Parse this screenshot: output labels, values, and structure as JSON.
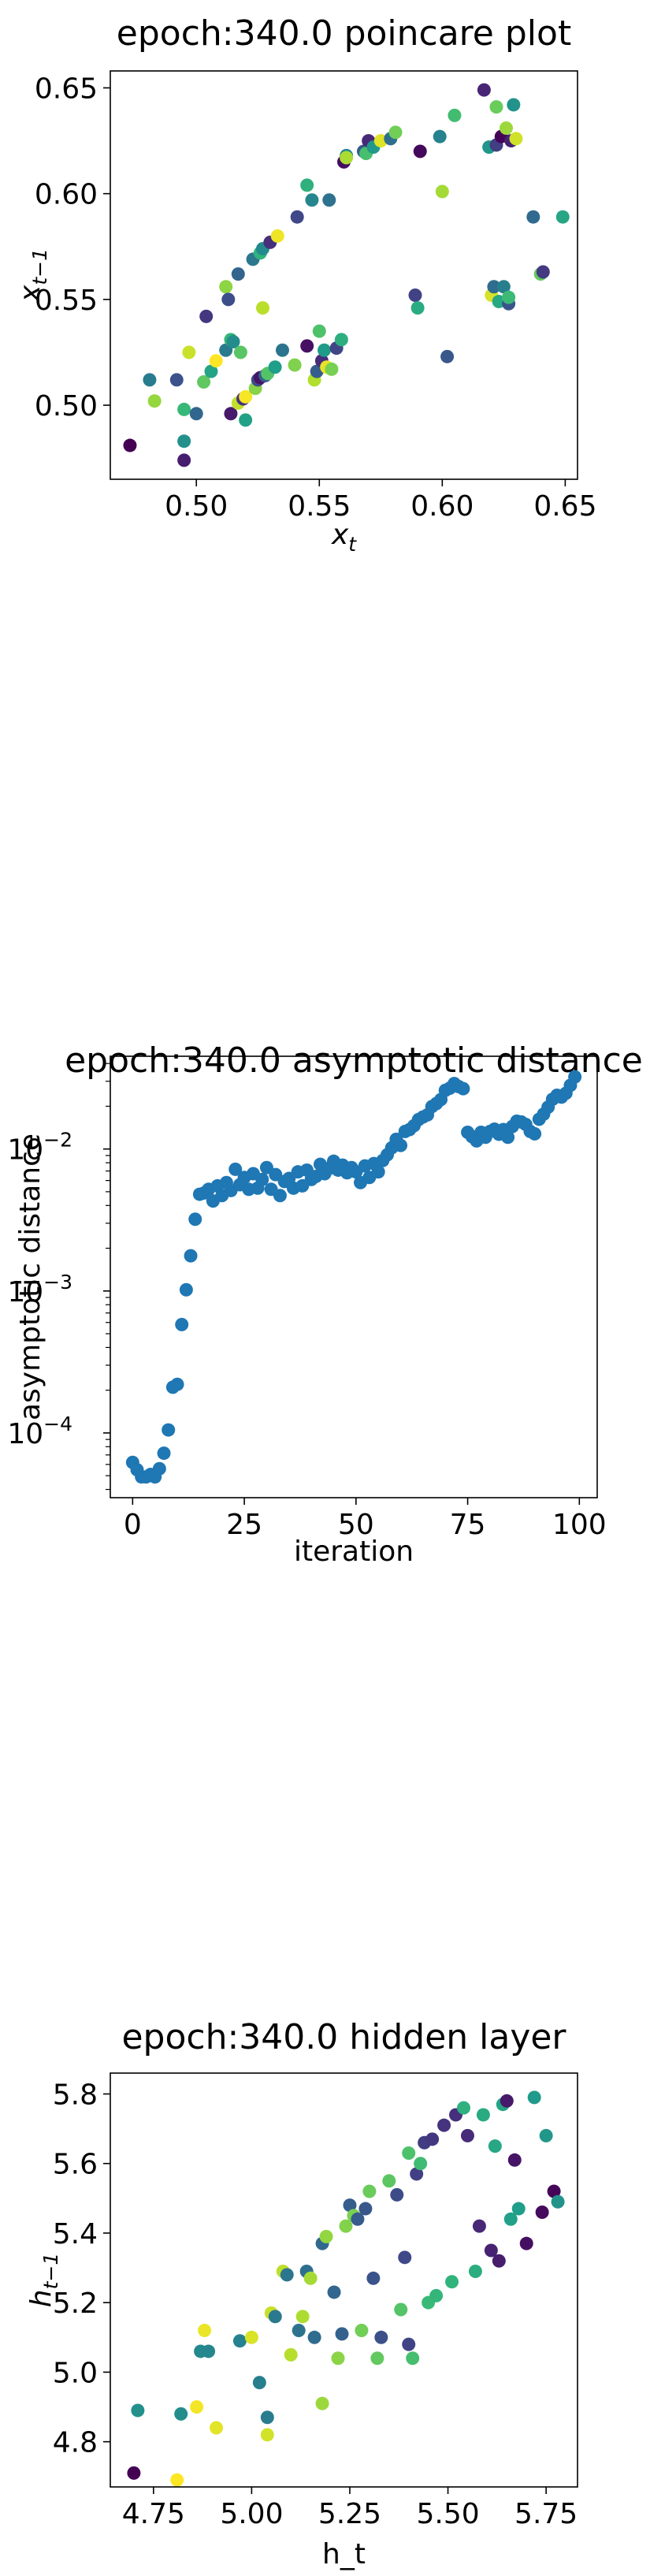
{
  "charts": [
    {
      "type": "scatter",
      "title": "epoch:340.0 poincare plot",
      "xlabel": "x",
      "xlabel_sub": "t",
      "ylabel": "x",
      "ylabel_sub": "t−1",
      "xlim": [
        0.465,
        0.655
      ],
      "ylim": [
        0.465,
        0.658
      ],
      "xticks": [
        {
          "v": 0.5,
          "label": "0.50"
        },
        {
          "v": 0.55,
          "label": "0.55"
        },
        {
          "v": 0.6,
          "label": "0.60"
        },
        {
          "v": 0.65,
          "label": "0.65"
        }
      ],
      "yticks": [
        {
          "v": 0.5,
          "label": "0.50"
        },
        {
          "v": 0.55,
          "label": "0.55"
        },
        {
          "v": 0.6,
          "label": "0.60"
        },
        {
          "v": 0.65,
          "label": "0.65"
        }
      ],
      "colored_by_sequence": true,
      "points": [
        [
          0.473,
          0.481
        ],
        [
          0.481,
          0.512
        ],
        [
          0.483,
          0.502
        ],
        [
          0.492,
          0.512
        ],
        [
          0.495,
          0.498
        ],
        [
          0.495,
          0.474
        ],
        [
          0.495,
          0.483
        ],
        [
          0.497,
          0.525
        ],
        [
          0.5,
          0.496
        ],
        [
          0.503,
          0.511
        ],
        [
          0.504,
          0.542
        ],
        [
          0.506,
          0.516
        ],
        [
          0.508,
          0.521
        ],
        [
          0.512,
          0.526
        ],
        [
          0.512,
          0.556
        ],
        [
          0.513,
          0.55
        ],
        [
          0.514,
          0.531
        ],
        [
          0.514,
          0.496
        ],
        [
          0.515,
          0.53
        ],
        [
          0.517,
          0.501
        ],
        [
          0.517,
          0.562
        ],
        [
          0.518,
          0.525
        ],
        [
          0.519,
          0.503
        ],
        [
          0.52,
          0.493
        ],
        [
          0.52,
          0.504
        ],
        [
          0.523,
          0.569
        ],
        [
          0.524,
          0.508
        ],
        [
          0.525,
          0.512
        ],
        [
          0.526,
          0.572
        ],
        [
          0.526,
          0.513
        ],
        [
          0.527,
          0.574
        ],
        [
          0.527,
          0.546
        ],
        [
          0.528,
          0.514
        ],
        [
          0.529,
          0.515
        ],
        [
          0.53,
          0.577
        ],
        [
          0.532,
          0.518
        ],
        [
          0.533,
          0.58
        ],
        [
          0.535,
          0.526
        ],
        [
          0.54,
          0.519
        ],
        [
          0.541,
          0.589
        ],
        [
          0.545,
          0.604
        ],
        [
          0.545,
          0.528
        ],
        [
          0.547,
          0.597
        ],
        [
          0.548,
          0.512
        ],
        [
          0.549,
          0.516
        ],
        [
          0.55,
          0.535
        ],
        [
          0.551,
          0.521
        ],
        [
          0.552,
          0.526
        ],
        [
          0.553,
          0.518
        ],
        [
          0.554,
          0.597
        ],
        [
          0.555,
          0.517
        ],
        [
          0.557,
          0.527
        ],
        [
          0.559,
          0.531
        ],
        [
          0.56,
          0.615
        ],
        [
          0.561,
          0.618
        ],
        [
          0.561,
          0.617
        ],
        [
          0.568,
          0.62
        ],
        [
          0.569,
          0.619
        ],
        [
          0.57,
          0.625
        ],
        [
          0.572,
          0.622
        ],
        [
          0.575,
          0.625
        ],
        [
          0.579,
          0.626
        ],
        [
          0.581,
          0.629
        ],
        [
          0.589,
          0.552
        ],
        [
          0.59,
          0.546
        ],
        [
          0.591,
          0.62
        ],
        [
          0.599,
          0.627
        ],
        [
          0.6,
          0.601
        ],
        [
          0.602,
          0.523
        ],
        [
          0.605,
          0.637
        ],
        [
          0.617,
          0.649
        ],
        [
          0.619,
          0.622
        ],
        [
          0.62,
          0.552
        ],
        [
          0.621,
          0.556
        ],
        [
          0.622,
          0.641
        ],
        [
          0.622,
          0.623
        ],
        [
          0.623,
          0.549
        ],
        [
          0.624,
          0.627
        ],
        [
          0.625,
          0.556
        ],
        [
          0.626,
          0.631
        ],
        [
          0.627,
          0.548
        ],
        [
          0.627,
          0.551
        ],
        [
          0.628,
          0.625
        ],
        [
          0.629,
          0.642
        ],
        [
          0.63,
          0.626
        ],
        [
          0.637,
          0.589
        ],
        [
          0.64,
          0.562
        ],
        [
          0.641,
          0.563
        ],
        [
          0.649,
          0.589
        ]
      ]
    },
    {
      "type": "scatter",
      "title": "epoch:340.0 asymptotic distance",
      "xlabel": "iteration",
      "ylabel": "asymptotic distance",
      "yscale": "log",
      "xlim": [
        -5,
        104
      ],
      "ylim": [
        3.5e-05,
        0.045
      ],
      "xticks": [
        {
          "v": 0,
          "label": "0"
        },
        {
          "v": 25,
          "label": "25"
        },
        {
          "v": 50,
          "label": "50"
        },
        {
          "v": 75,
          "label": "75"
        },
        {
          "v": 100,
          "label": "100"
        }
      ],
      "yticks": [
        {
          "v": 0.0001,
          "label": "10",
          "exp": "−4"
        },
        {
          "v": 0.001,
          "label": "10",
          "exp": "−3"
        },
        {
          "v": 0.01,
          "label": "10",
          "exp": "−2"
        }
      ],
      "color": "#1f77b4",
      "points": [
        [
          0,
          6.2e-05
        ],
        [
          1,
          5.5e-05
        ],
        [
          2,
          4.9e-05
        ],
        [
          3,
          4.9e-05
        ],
        [
          4,
          5.1e-05
        ],
        [
          5,
          4.9e-05
        ],
        [
          6,
          5.6e-05
        ],
        [
          7,
          7.2e-05
        ],
        [
          8,
          0.000105
        ],
        [
          9,
          0.00021
        ],
        [
          10,
          0.00022
        ],
        [
          11,
          0.00058
        ],
        [
          12,
          0.00102
        ],
        [
          13,
          0.00177
        ],
        [
          14,
          0.0032
        ],
        [
          15,
          0.0048
        ],
        [
          16,
          0.0049
        ],
        [
          17,
          0.0052
        ],
        [
          18,
          0.0043
        ],
        [
          19,
          0.0055
        ],
        [
          20,
          0.0047
        ],
        [
          21,
          0.0058
        ],
        [
          22,
          0.0051
        ],
        [
          23,
          0.0072
        ],
        [
          24,
          0.0056
        ],
        [
          25,
          0.0063
        ],
        [
          26,
          0.0052
        ],
        [
          27,
          0.0067
        ],
        [
          28,
          0.0053
        ],
        [
          29,
          0.0061
        ],
        [
          30,
          0.0074
        ],
        [
          31,
          0.0052
        ],
        [
          32,
          0.0066
        ],
        [
          33,
          0.0047
        ],
        [
          34,
          0.0059
        ],
        [
          35,
          0.0062
        ],
        [
          36,
          0.0053
        ],
        [
          37,
          0.0069
        ],
        [
          38,
          0.0055
        ],
        [
          39,
          0.0071
        ],
        [
          40,
          0.0061
        ],
        [
          41,
          0.0064
        ],
        [
          42,
          0.0078
        ],
        [
          43,
          0.0067
        ],
        [
          44,
          0.0073
        ],
        [
          45,
          0.0082
        ],
        [
          46,
          0.0071
        ],
        [
          47,
          0.0077
        ],
        [
          48,
          0.0068
        ],
        [
          49,
          0.0074
        ],
        [
          50,
          0.0069
        ],
        [
          51,
          0.0058
        ],
        [
          52,
          0.0076
        ],
        [
          53,
          0.0063
        ],
        [
          54,
          0.0079
        ],
        [
          55,
          0.0069
        ],
        [
          56,
          0.0083
        ],
        [
          57,
          0.0091
        ],
        [
          58,
          0.0102
        ],
        [
          59,
          0.0117
        ],
        [
          60,
          0.0106
        ],
        [
          61,
          0.0133
        ],
        [
          62,
          0.0137
        ],
        [
          63,
          0.0146
        ],
        [
          64,
          0.0161
        ],
        [
          65,
          0.0168
        ],
        [
          66,
          0.0174
        ],
        [
          67,
          0.0199
        ],
        [
          68,
          0.0209
        ],
        [
          69,
          0.0223
        ],
        [
          70,
          0.0259
        ],
        [
          71,
          0.0268
        ],
        [
          72,
          0.0289
        ],
        [
          73,
          0.0275
        ],
        [
          74,
          0.0266
        ],
        [
          75,
          0.0131
        ],
        [
          76,
          0.0122
        ],
        [
          77,
          0.0114
        ],
        [
          78,
          0.0131
        ],
        [
          79,
          0.0121
        ],
        [
          80,
          0.0133
        ],
        [
          81,
          0.0138
        ],
        [
          82,
          0.0127
        ],
        [
          83,
          0.0137
        ],
        [
          84,
          0.0121
        ],
        [
          85,
          0.0144
        ],
        [
          86,
          0.0157
        ],
        [
          87,
          0.0155
        ],
        [
          88,
          0.0149
        ],
        [
          89,
          0.0133
        ],
        [
          90,
          0.0128
        ],
        [
          91,
          0.0162
        ],
        [
          92,
          0.0176
        ],
        [
          93,
          0.0197
        ],
        [
          94,
          0.0224
        ],
        [
          95,
          0.0239
        ],
        [
          96,
          0.0232
        ],
        [
          97,
          0.0247
        ],
        [
          98,
          0.0281
        ],
        [
          99,
          0.0322
        ]
      ]
    },
    {
      "type": "scatter",
      "title": "epoch:340.0 hidden layer",
      "xlabel": "h_t",
      "ylabel": "h",
      "ylabel_sub": "t−1",
      "xlim": [
        4.64,
        5.83
      ],
      "ylim": [
        4.67,
        5.86
      ],
      "xticks": [
        {
          "v": 4.75,
          "label": "4.75"
        },
        {
          "v": 5.0,
          "label": "5.00"
        },
        {
          "v": 5.25,
          "label": "5.25"
        },
        {
          "v": 5.5,
          "label": "5.50"
        },
        {
          "v": 5.75,
          "label": "5.75"
        }
      ],
      "yticks": [
        {
          "v": 4.8,
          "label": "4.8"
        },
        {
          "v": 5.0,
          "label": "5.0"
        },
        {
          "v": 5.2,
          "label": "5.2"
        },
        {
          "v": 5.4,
          "label": "5.4"
        },
        {
          "v": 5.6,
          "label": "5.6"
        },
        {
          "v": 5.8,
          "label": "5.8"
        }
      ],
      "colored_by_sequence": true,
      "points": [
        [
          4.7,
          4.71
        ],
        [
          4.71,
          4.89
        ],
        [
          4.81,
          4.69
        ],
        [
          4.82,
          4.88
        ],
        [
          4.86,
          4.9
        ],
        [
          4.87,
          5.06
        ],
        [
          4.88,
          5.12
        ],
        [
          4.89,
          5.06
        ],
        [
          4.91,
          4.84
        ],
        [
          4.97,
          5.09
        ],
        [
          5.0,
          5.1
        ],
        [
          5.02,
          4.97
        ],
        [
          5.04,
          4.82
        ],
        [
          5.04,
          4.87
        ],
        [
          5.05,
          5.17
        ],
        [
          5.06,
          5.16
        ],
        [
          5.08,
          5.29
        ],
        [
          5.09,
          5.28
        ],
        [
          5.1,
          5.05
        ],
        [
          5.12,
          5.12
        ],
        [
          5.13,
          5.16
        ],
        [
          5.14,
          5.29
        ],
        [
          5.15,
          5.27
        ],
        [
          5.16,
          5.1
        ],
        [
          5.18,
          4.91
        ],
        [
          5.18,
          5.37
        ],
        [
          5.19,
          5.39
        ],
        [
          5.21,
          5.23
        ],
        [
          5.22,
          5.04
        ],
        [
          5.23,
          5.11
        ],
        [
          5.24,
          5.42
        ],
        [
          5.25,
          5.48
        ],
        [
          5.26,
          5.45
        ],
        [
          5.27,
          5.44
        ],
        [
          5.28,
          5.12
        ],
        [
          5.29,
          5.47
        ],
        [
          5.3,
          5.52
        ],
        [
          5.31,
          5.27
        ],
        [
          5.32,
          5.04
        ],
        [
          5.33,
          5.1
        ],
        [
          5.35,
          5.55
        ],
        [
          5.37,
          5.51
        ],
        [
          5.38,
          5.18
        ],
        [
          5.39,
          5.33
        ],
        [
          5.4,
          5.63
        ],
        [
          5.4,
          5.08
        ],
        [
          5.41,
          5.04
        ],
        [
          5.42,
          5.57
        ],
        [
          5.43,
          5.6
        ],
        [
          5.44,
          5.66
        ],
        [
          5.45,
          5.2
        ],
        [
          5.46,
          5.67
        ],
        [
          5.47,
          5.22
        ],
        [
          5.49,
          5.71
        ],
        [
          5.51,
          5.26
        ],
        [
          5.52,
          5.74
        ],
        [
          5.54,
          5.76
        ],
        [
          5.55,
          5.68
        ],
        [
          5.57,
          5.29
        ],
        [
          5.58,
          5.42
        ],
        [
          5.59,
          5.74
        ],
        [
          5.61,
          5.35
        ],
        [
          5.62,
          5.65
        ],
        [
          5.63,
          5.32
        ],
        [
          5.64,
          5.77
        ],
        [
          5.65,
          5.78
        ],
        [
          5.66,
          5.44
        ],
        [
          5.67,
          5.61
        ],
        [
          5.68,
          5.47
        ],
        [
          5.7,
          5.37
        ],
        [
          5.72,
          5.79
        ],
        [
          5.74,
          5.46
        ],
        [
          5.75,
          5.68
        ],
        [
          5.77,
          5.52
        ],
        [
          5.78,
          5.49
        ]
      ]
    }
  ]
}
